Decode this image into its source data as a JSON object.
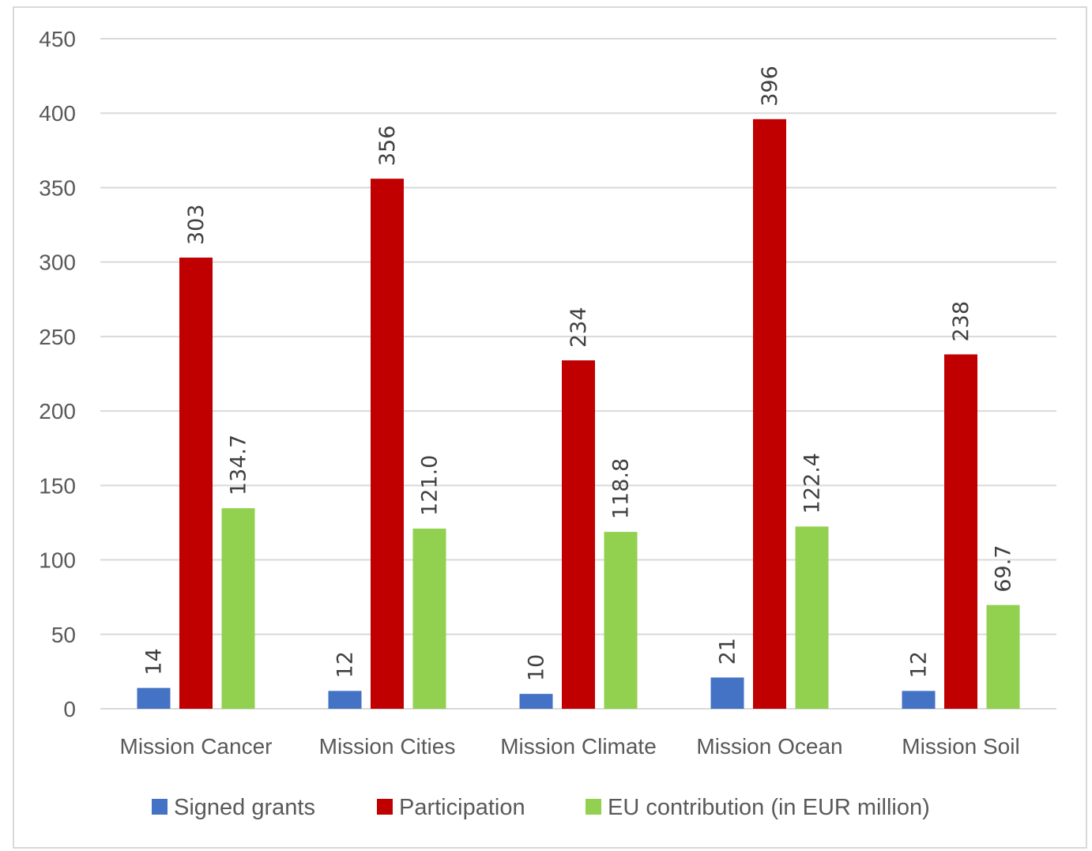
{
  "chart_data": {
    "type": "bar",
    "title": "",
    "xlabel": "",
    "ylabel": "",
    "categories": [
      "Mission Cancer",
      "Mission Cities",
      "Mission Climate",
      "Mission Ocean",
      "Mission Soil"
    ],
    "series": [
      {
        "name": "Signed grants",
        "color": "#4472c4",
        "values": [
          14,
          12,
          10,
          21,
          12
        ],
        "labels": [
          "14",
          "12",
          "10",
          "21",
          "12"
        ]
      },
      {
        "name": "Participation",
        "color": "#c00000",
        "values": [
          303,
          356,
          234,
          396,
          238
        ],
        "labels": [
          "303",
          "356",
          "234",
          "396",
          "238"
        ]
      },
      {
        "name": "EU contribution (in EUR million)",
        "color": "#92d050",
        "values": [
          134.7,
          121.0,
          118.8,
          122.4,
          69.7
        ],
        "labels": [
          "134.7",
          "121.0",
          "118.8",
          "122.4",
          "69.7"
        ]
      }
    ],
    "ylim": [
      0,
      450
    ],
    "yticks": [
      0,
      50,
      100,
      150,
      200,
      250,
      300,
      350,
      400,
      450
    ],
    "grid": true,
    "legend_position": "bottom"
  }
}
